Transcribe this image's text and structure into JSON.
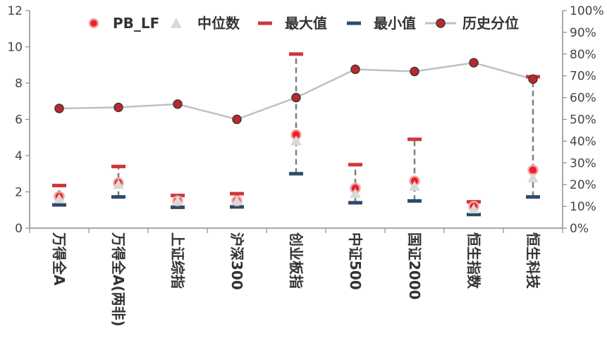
{
  "chart_data": {
    "type": "line",
    "categories": [
      "万得全A",
      "万得全A(两非)",
      "上证综指",
      "沪深300",
      "创业板指",
      "中证500",
      "国证2000",
      "恒生指数",
      "恒生科技"
    ],
    "series": [
      {
        "name": "PB_LF",
        "axis": "left",
        "values": [
          1.75,
          2.5,
          1.5,
          1.5,
          5.15,
          2.2,
          2.6,
          1.2,
          3.2
        ],
        "color": "#e8232a"
      },
      {
        "name": "中位数",
        "axis": "left",
        "values": [
          1.6,
          2.4,
          1.5,
          1.5,
          4.8,
          1.9,
          2.3,
          1.05,
          2.75
        ],
        "color": "#d9d9d9"
      },
      {
        "name": "最大值",
        "axis": "left",
        "values": [
          2.35,
          3.4,
          1.8,
          1.9,
          9.6,
          3.5,
          4.9,
          1.45,
          8.35
        ],
        "color": "#d0373a"
      },
      {
        "name": "最小值",
        "axis": "left",
        "values": [
          1.28,
          1.72,
          1.15,
          1.17,
          3.0,
          1.4,
          1.5,
          0.75,
          1.72
        ],
        "color": "#2d4a6b"
      },
      {
        "name": "历史分位",
        "axis": "right",
        "values": [
          55,
          55.5,
          57,
          50,
          60,
          73,
          72,
          76,
          68.5
        ],
        "color": "#c0c0c0",
        "marker_color": "#c0272d"
      }
    ],
    "yaxis_left": {
      "ylim": [
        0,
        12
      ],
      "ticks": [
        "0",
        "2",
        "4",
        "6",
        "8",
        "10",
        "12"
      ]
    },
    "yaxis_right": {
      "ylim": [
        0,
        100
      ],
      "ticks": [
        "0%",
        "10%",
        "20%",
        "30%",
        "40%",
        "50%",
        "60%",
        "70%",
        "80%",
        "90%",
        "100%"
      ]
    },
    "title": "",
    "xlabel": "",
    "ylabel": "",
    "grid": false,
    "legend_position": "top"
  }
}
